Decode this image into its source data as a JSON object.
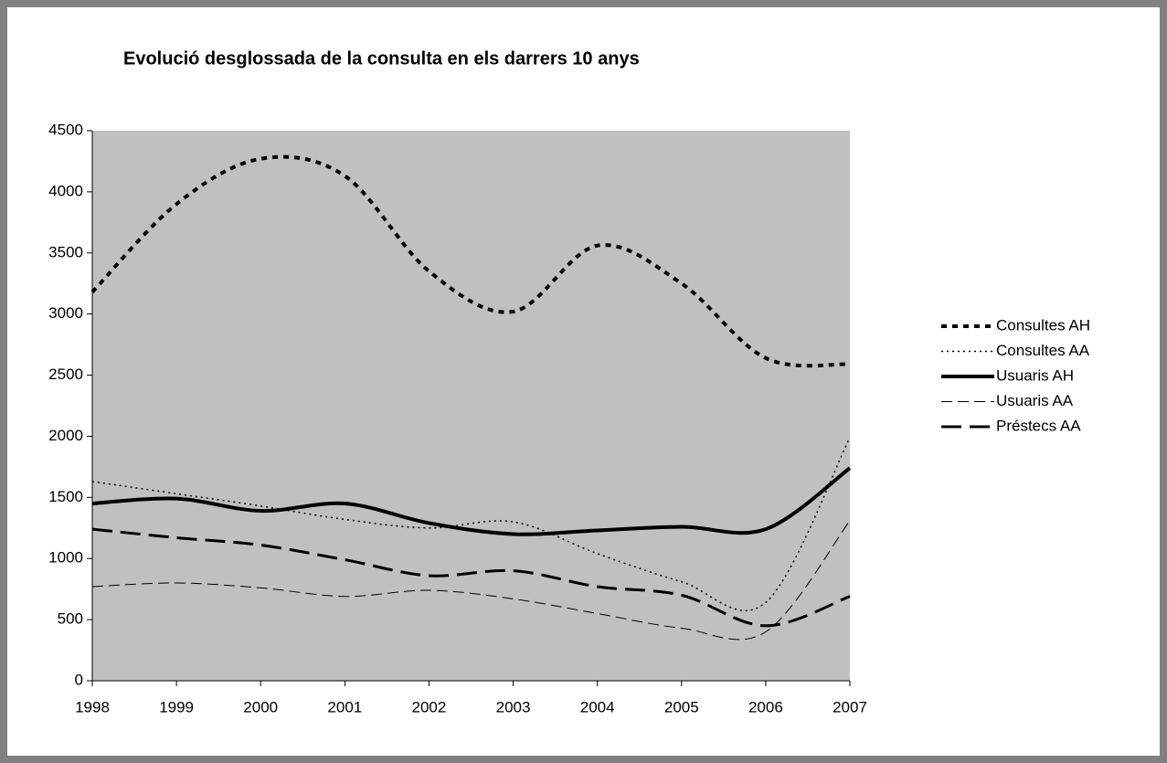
{
  "chart_data": {
    "type": "line",
    "title": "Evolució desglossada de la consulta en els darrers 10 anys",
    "categories": [
      "1998",
      "1999",
      "2000",
      "2001",
      "2002",
      "2003",
      "2004",
      "2005",
      "2006",
      "2007"
    ],
    "series": [
      {
        "name": "Consultes AH",
        "color": "#000000",
        "values": [
          3180,
          3900,
          4270,
          4130,
          3350,
          3020,
          3560,
          3250,
          2640,
          2590
        ]
      },
      {
        "name": "Consultes AA",
        "color": "#000000",
        "values": [
          1630,
          1530,
          1430,
          1320,
          1250,
          1300,
          1040,
          810,
          640,
          1990
        ]
      },
      {
        "name": "Usuaris AH",
        "color": "#000000",
        "values": [
          1450,
          1490,
          1390,
          1450,
          1290,
          1200,
          1230,
          1260,
          1240,
          1740
        ]
      },
      {
        "name": "Usuaris AA",
        "color": "#000000",
        "values": [
          770,
          800,
          760,
          690,
          740,
          670,
          550,
          430,
          400,
          1310
        ]
      },
      {
        "name": "Préstecs AA",
        "color": "#000000",
        "values": [
          1240,
          1170,
          1110,
          990,
          860,
          900,
          770,
          700,
          450,
          690
        ]
      }
    ],
    "ylim": [
      0,
      4500
    ],
    "yticks": [
      0,
      500,
      1000,
      1500,
      2000,
      2500,
      3000,
      3500,
      4000,
      4500
    ],
    "grid": false,
    "legend": "right"
  }
}
